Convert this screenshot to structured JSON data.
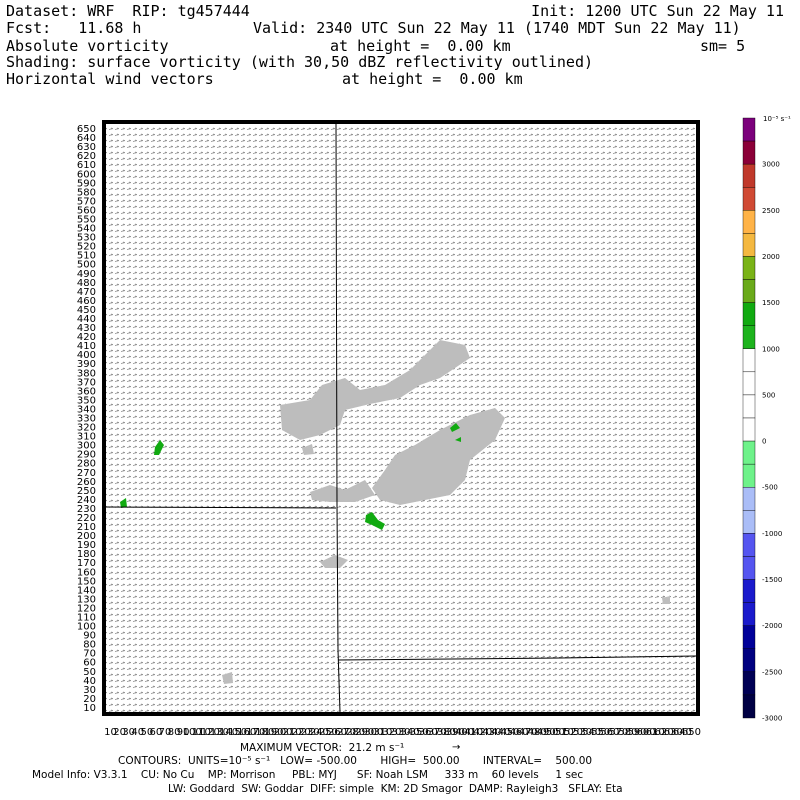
{
  "header": {
    "line1_left": "Dataset: WRF  RIP: tg457444",
    "line1_right": "Init: 1200 UTC Sun 22 May 11",
    "line2_left": "Fcst:   11.68 h",
    "line2_right": "Valid: 2340 UTC Sun 22 May 11 (1740 MDT Sun 22 May 11)",
    "line3_left": "Absolute vorticity",
    "line3_mid": "at height =  0.00 km",
    "line3_right": "sm= 5",
    "line4": "Shading: surface vorticity (with 30,50 dBZ reflectivity outlined)",
    "line5_left": "Horizontal wind vectors",
    "line5_mid": "at height =  0.00 km"
  },
  "footer": {
    "max_vector": "MAXIMUM VECTOR:  21.2 m s⁻¹",
    "contours": "CONTOURS:  UNITS=10⁻⁵ s⁻¹   LOW= -500.00       HIGH=  500.00       INTERVAL=    500.00",
    "model_info": "Model Info: V3.3.1    CU: No Cu    MP: Morrison     PBL: MYJ      SF: Noah LSM     333 m    60 levels     1 sec",
    "model_info2": "LW: Goddard  SW: Goddar  DIFF: simple  KM: 2D Smagor  DAMP: Rayleigh3   SFLAY: Eta"
  },
  "chart_data": {
    "type": "heatmap",
    "title": "Absolute vorticity",
    "subtitle": "Shading: surface vorticity (with 30,50 dBZ reflectivity outlined)",
    "xlabel": "",
    "ylabel": "",
    "y_ticks": [
      650,
      640,
      630,
      620,
      610,
      600,
      590,
      580,
      570,
      560,
      550,
      540,
      530,
      520,
      510,
      500,
      490,
      480,
      470,
      460,
      450,
      440,
      430,
      420,
      410,
      400,
      390,
      380,
      370,
      360,
      350,
      340,
      330,
      320,
      310,
      300,
      290,
      280,
      270,
      260,
      250,
      240,
      230,
      220,
      210,
      200,
      190,
      180,
      170,
      160,
      150,
      140,
      130,
      120,
      110,
      100,
      90,
      80,
      70,
      60,
      50,
      40,
      30,
      20,
      10
    ],
    "ylim": [
      5,
      655
    ],
    "xlim": [
      5,
      655
    ],
    "grid": false,
    "colorbar": {
      "units": "10⁻⁵ s⁻¹",
      "levels": [
        3000,
        2500,
        2000,
        1500,
        1000,
        500,
        0,
        -500,
        -1000,
        -1500,
        -2000,
        -2500,
        -3000
      ],
      "colors": [
        "#7b007b",
        "#8b0038",
        "#c0392b",
        "#d04a34",
        "#ffb347",
        "#f4b840",
        "#7ab317",
        "#6aaa1a",
        "#11aa11",
        "#1db31d",
        "#ffffff",
        "#ffffff",
        "#ffffff",
        "#ffffff",
        "#6ef28a",
        "#6ef28a",
        "#aabdf7",
        "#aabdf7",
        "#5555f0",
        "#5555f0",
        "#1a1acc",
        "#1a1acc",
        "#000099",
        "#000080",
        "#000055",
        "#000044"
      ]
    },
    "contours": {
      "units": "10⁻⁵ s⁻¹",
      "low": -500.0,
      "high": 500.0,
      "interval": 500.0
    },
    "max_vector": {
      "value": 21.2,
      "units": "m s⁻¹"
    },
    "reflectivity_outlines_dBZ": [
      30,
      50
    ]
  }
}
